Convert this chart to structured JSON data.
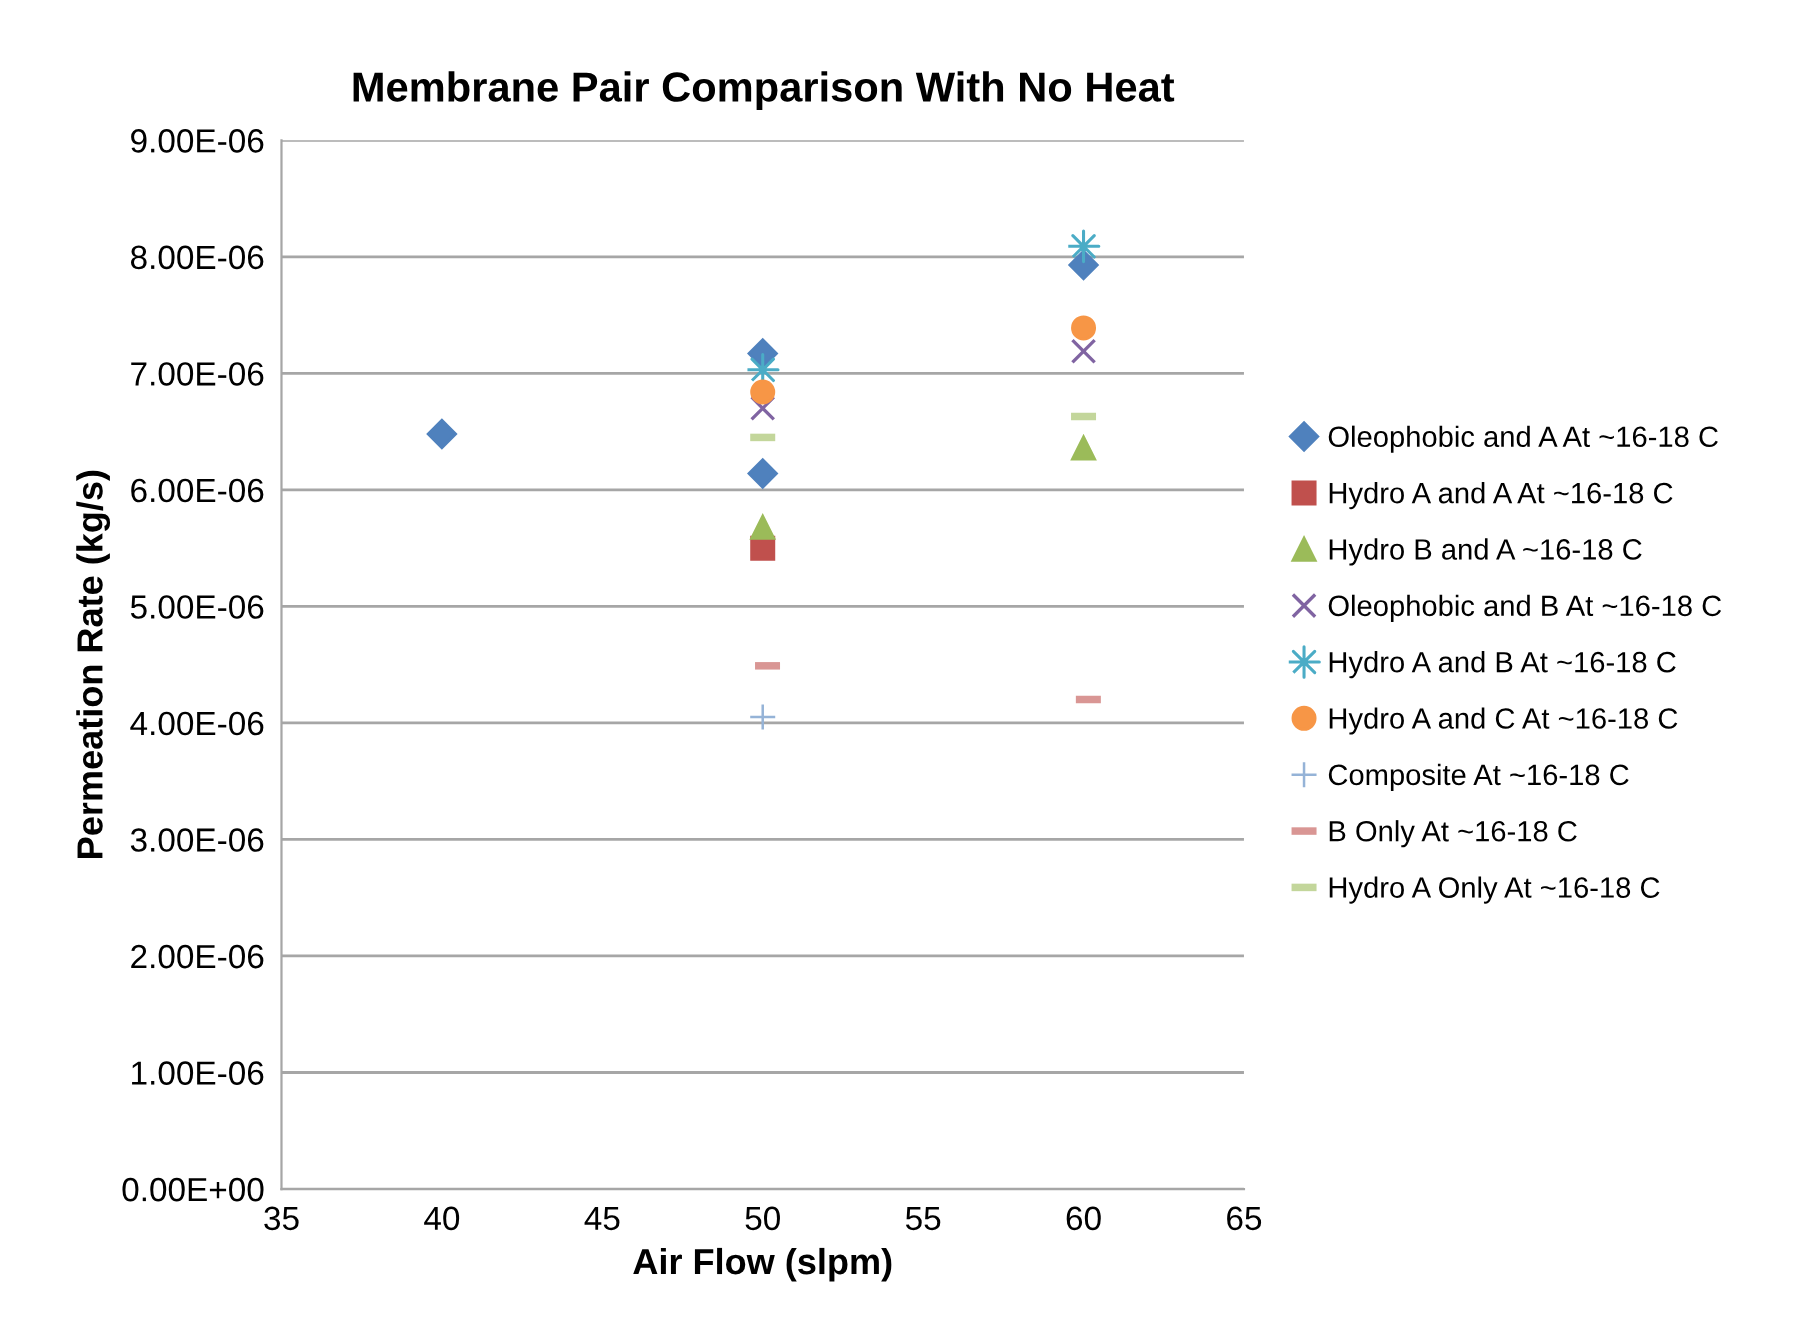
{
  "chart_data": {
    "type": "scatter",
    "title": "Membrane Pair Comparison With No Heat",
    "xlabel": "Air Flow (slpm)",
    "ylabel": "Permeation Rate (kg/s)",
    "xlim": [
      35,
      65
    ],
    "xticks": [
      35,
      40,
      45,
      50,
      55,
      60,
      65
    ],
    "ylim": [
      0,
      9e-06
    ],
    "yticks": [
      {
        "value": 0,
        "label": "0.00E+00"
      },
      {
        "value": 1e-06,
        "label": "1.00E-06"
      },
      {
        "value": 2e-06,
        "label": "2.00E-06"
      },
      {
        "value": 3e-06,
        "label": "3.00E-06"
      },
      {
        "value": 4e-06,
        "label": "4.00E-06"
      },
      {
        "value": 5e-06,
        "label": "5.00E-06"
      },
      {
        "value": 6e-06,
        "label": "6.00E-06"
      },
      {
        "value": 7e-06,
        "label": "7.00E-06"
      },
      {
        "value": 8e-06,
        "label": "8.00E-06"
      },
      {
        "value": 9e-06,
        "label": "9.00E-06"
      }
    ],
    "grid": "y",
    "legend": "right",
    "series": [
      {
        "name": "Oleophobic and A At ~16-18 C",
        "color": "#4f81bd",
        "x": [
          40,
          50,
          50,
          60
        ],
        "values": [
          6.48e-06,
          7.17e-06,
          6.14e-06,
          7.93e-06
        ]
      },
      {
        "name": "Hydro A and A At ~16-18 C",
        "color": "#c0504d",
        "x": [
          50
        ],
        "values": [
          5.5e-06
        ]
      },
      {
        "name": "Hydro B and A ~16-18 C",
        "color": "#9bbb59",
        "x": [
          50,
          60
        ],
        "values": [
          5.68e-06,
          6.36e-06
        ]
      },
      {
        "name": "Oleophobic and B At ~16-18 C",
        "color": "#8064a2",
        "x": [
          50,
          60
        ],
        "values": [
          6.7e-06,
          7.19e-06
        ]
      },
      {
        "name": "Hydro A and B At ~16-18 C",
        "color": "#4bacc6",
        "x": [
          50,
          60
        ],
        "values": [
          7.03e-06,
          8.09e-06
        ]
      },
      {
        "name": "Hydro A and C At ~16-18 C",
        "color": "#f79646",
        "x": [
          50,
          60
        ],
        "values": [
          6.84e-06,
          7.39e-06
        ]
      },
      {
        "name": "Composite At ~16-18 C",
        "color": "#95b3d7",
        "x": [
          50
        ],
        "values": [
          4.05e-06
        ]
      },
      {
        "name": "B Only At ~16-18 C",
        "color": "#d99694",
        "x": [
          50.15,
          60.15
        ],
        "values": [
          4.49e-06,
          4.2e-06
        ]
      },
      {
        "name": "Hydro A Only At ~16-18 C",
        "color": "#c3d69b",
        "x": [
          50,
          60
        ],
        "values": [
          6.45e-06,
          6.63e-06
        ]
      }
    ]
  }
}
